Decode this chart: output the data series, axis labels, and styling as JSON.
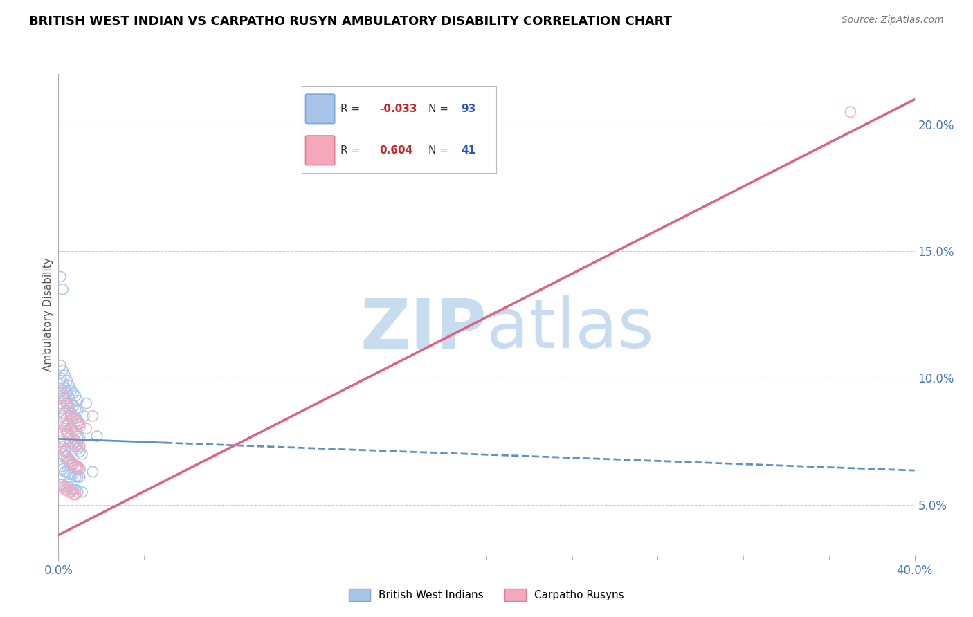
{
  "title": "BRITISH WEST INDIAN VS CARPATHO RUSYN AMBULATORY DISABILITY CORRELATION CHART",
  "source": "Source: ZipAtlas.com",
  "xlim": [
    0.0,
    0.4
  ],
  "ylim": [
    0.03,
    0.22
  ],
  "ylabel_ticks": [
    5.0,
    10.0,
    15.0,
    20.0
  ],
  "blue_R": -0.033,
  "blue_N": 93,
  "pink_R": 0.604,
  "pink_N": 41,
  "blue_color": "#A8C4E8",
  "pink_color": "#F4A8BC",
  "blue_edge_color": "#7AAAD8",
  "pink_edge_color": "#E87898",
  "blue_line_color": "#6090C8",
  "pink_line_color": "#E06080",
  "watermark_color": "#C8DCF0",
  "legend_label_blue": "British West Indians",
  "legend_label_pink": "Carpatho Rusyns",
  "ylabel": "Ambulatory Disability",
  "blue_scatter_x": [
    0.001,
    0.002,
    0.003,
    0.004,
    0.005,
    0.006,
    0.007,
    0.008,
    0.009,
    0.01,
    0.002,
    0.003,
    0.004,
    0.005,
    0.006,
    0.007,
    0.008,
    0.009,
    0.01,
    0.011,
    0.001,
    0.002,
    0.003,
    0.004,
    0.005,
    0.006,
    0.007,
    0.008,
    0.009,
    0.01,
    0.001,
    0.002,
    0.003,
    0.004,
    0.005,
    0.006,
    0.007,
    0.008,
    0.009,
    0.01,
    0.001,
    0.002,
    0.003,
    0.004,
    0.005,
    0.006,
    0.007,
    0.008,
    0.009,
    0.01,
    0.001,
    0.002,
    0.003,
    0.004,
    0.005,
    0.006,
    0.007,
    0.008,
    0.009,
    0.011,
    0.001,
    0.002,
    0.003,
    0.004,
    0.005,
    0.006,
    0.007,
    0.008,
    0.009,
    0.012,
    0.001,
    0.002,
    0.003,
    0.004,
    0.005,
    0.006,
    0.007,
    0.008,
    0.009,
    0.013,
    0.001,
    0.002,
    0.003,
    0.004,
    0.005,
    0.006,
    0.007,
    0.008,
    0.009,
    0.016,
    0.001,
    0.002,
    0.018
  ],
  "blue_scatter_y": [
    0.075,
    0.073,
    0.071,
    0.069,
    0.068,
    0.067,
    0.066,
    0.065,
    0.065,
    0.064,
    0.082,
    0.08,
    0.078,
    0.076,
    0.075,
    0.074,
    0.073,
    0.072,
    0.071,
    0.07,
    0.09,
    0.088,
    0.086,
    0.084,
    0.082,
    0.08,
    0.079,
    0.078,
    0.077,
    0.076,
    0.096,
    0.094,
    0.092,
    0.09,
    0.088,
    0.086,
    0.085,
    0.084,
    0.083,
    0.082,
    0.065,
    0.064,
    0.063,
    0.063,
    0.062,
    0.062,
    0.062,
    0.061,
    0.061,
    0.061,
    0.058,
    0.058,
    0.057,
    0.057,
    0.057,
    0.056,
    0.056,
    0.056,
    0.055,
    0.055,
    0.1,
    0.098,
    0.096,
    0.094,
    0.092,
    0.09,
    0.089,
    0.088,
    0.087,
    0.085,
    0.105,
    0.103,
    0.101,
    0.099,
    0.097,
    0.095,
    0.094,
    0.093,
    0.091,
    0.09,
    0.072,
    0.07,
    0.069,
    0.068,
    0.067,
    0.066,
    0.066,
    0.065,
    0.064,
    0.063,
    0.14,
    0.135,
    0.077
  ],
  "pink_scatter_x": [
    0.001,
    0.002,
    0.003,
    0.004,
    0.005,
    0.006,
    0.007,
    0.008,
    0.009,
    0.01,
    0.001,
    0.002,
    0.003,
    0.004,
    0.005,
    0.006,
    0.007,
    0.008,
    0.009,
    0.01,
    0.001,
    0.002,
    0.003,
    0.004,
    0.005,
    0.006,
    0.007,
    0.008,
    0.009,
    0.01,
    0.001,
    0.002,
    0.003,
    0.004,
    0.005,
    0.006,
    0.007,
    0.008,
    0.013,
    0.016,
    0.37
  ],
  "pink_scatter_y": [
    0.075,
    0.073,
    0.071,
    0.069,
    0.068,
    0.067,
    0.066,
    0.065,
    0.065,
    0.064,
    0.085,
    0.083,
    0.081,
    0.079,
    0.078,
    0.077,
    0.076,
    0.075,
    0.074,
    0.073,
    0.095,
    0.093,
    0.091,
    0.089,
    0.087,
    0.085,
    0.084,
    0.083,
    0.082,
    0.081,
    0.058,
    0.057,
    0.056,
    0.056,
    0.055,
    0.055,
    0.054,
    0.054,
    0.08,
    0.085,
    0.205
  ],
  "blue_line_x0": 0.0,
  "blue_line_x1": 0.4,
  "blue_line_y0": 0.076,
  "blue_line_y1": 0.0635,
  "pink_line_x0": 0.0,
  "pink_line_x1": 0.4,
  "pink_line_y0": 0.038,
  "pink_line_y1": 0.21
}
